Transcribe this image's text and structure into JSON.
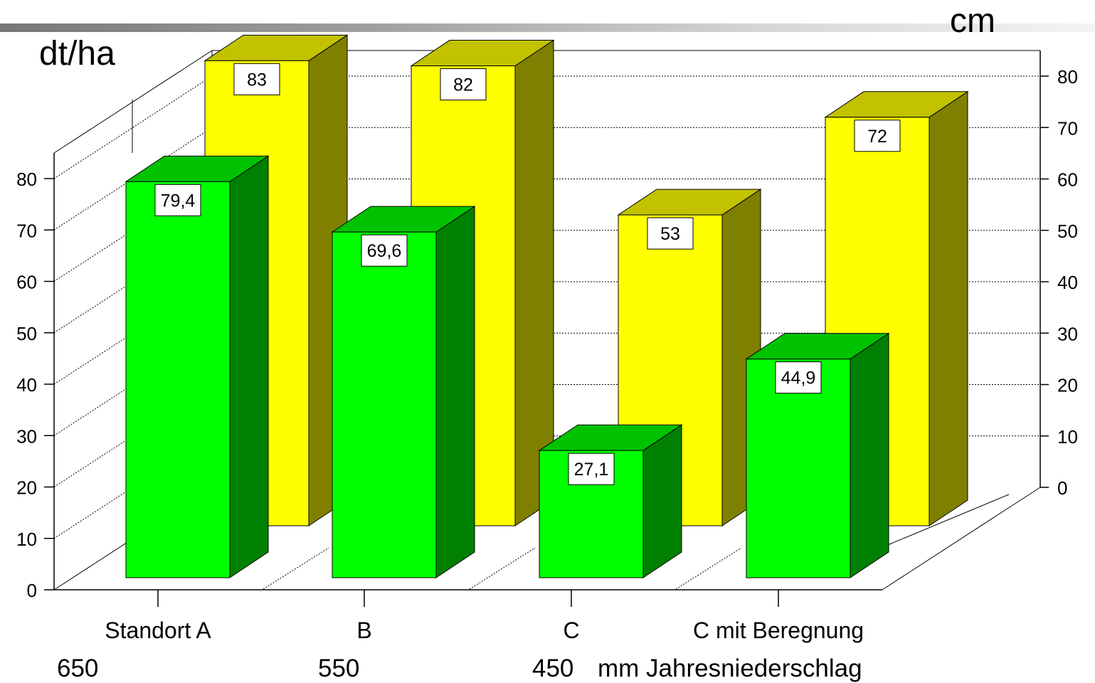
{
  "chart_data": {
    "type": "bar",
    "categories": [
      "Standort A",
      "B",
      "C",
      "C mit Beregnung"
    ],
    "series": [
      {
        "values": [
          79.4,
          69.6,
          27.1,
          44.9
        ],
        "labels": [
          "79,4",
          "69,6",
          "27,1",
          "44,9"
        ],
        "axis": "left",
        "color": "#00ff00"
      },
      {
        "values": [
          83,
          82,
          53,
          72
        ],
        "labels": [
          "83",
          "82",
          "53",
          "72"
        ],
        "axis": "right",
        "color": "#ffff00"
      }
    ],
    "y_left": {
      "unit": "dt/ha",
      "min": 0,
      "max": 80,
      "ticks": [
        "0",
        "10",
        "20",
        "30",
        "40",
        "50",
        "60",
        "70",
        "80"
      ]
    },
    "y_right": {
      "unit": "cm",
      "min": 0,
      "max": 80,
      "ticks": [
        "0",
        "10",
        "20",
        "30",
        "40",
        "50",
        "60",
        "70",
        "80"
      ]
    },
    "grid": true,
    "style": "3d"
  },
  "footer": {
    "precip": [
      "650",
      "550",
      "450"
    ],
    "label": "mm Jahresniederschlag"
  }
}
